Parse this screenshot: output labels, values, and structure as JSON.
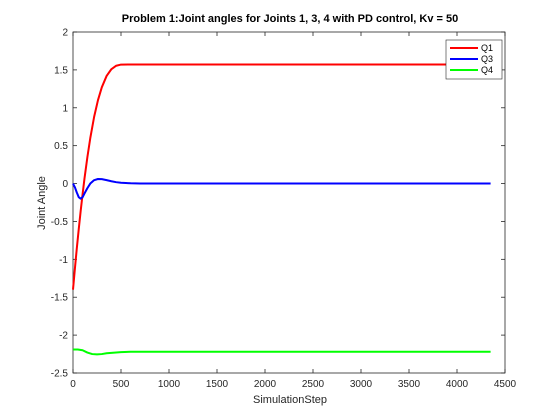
{
  "chart_data": {
    "type": "line",
    "title": "Problem 1:Joint angles for Joints 1, 3, 4 with PD control, Kv = 50",
    "xlabel": "SimulationStep",
    "ylabel": "Joint Angle",
    "xlim": [
      0,
      4500
    ],
    "ylim": [
      -2.5,
      2
    ],
    "xticks": [
      0,
      500,
      1000,
      1500,
      2000,
      2500,
      3000,
      3500,
      4000,
      4500
    ],
    "yticks": [
      -2.5,
      -2,
      -1.5,
      -1,
      -0.5,
      0,
      0.5,
      1,
      1.5,
      2
    ],
    "xtick_labels": [
      "0",
      "500",
      "1000",
      "1500",
      "2000",
      "2500",
      "3000",
      "3500",
      "4000",
      "4500"
    ],
    "ytick_labels": [
      "-2.5",
      "-2",
      "-1.5",
      "-1",
      "-0.5",
      "0",
      "0.5",
      "1",
      "1.5",
      "2"
    ],
    "grid": false,
    "legend_position": "top-right",
    "series": [
      {
        "name": "Q1",
        "color": "#ff0000",
        "x": [
          0,
          20,
          40,
          60,
          80,
          100,
          120,
          150,
          180,
          220,
          260,
          300,
          350,
          400,
          450,
          500,
          600,
          800,
          1000,
          2000,
          3000,
          4000,
          4350
        ],
        "y": [
          -1.4,
          -1.12,
          -0.85,
          -0.6,
          -0.36,
          -0.14,
          0.07,
          0.35,
          0.6,
          0.88,
          1.1,
          1.27,
          1.42,
          1.51,
          1.555,
          1.57,
          1.571,
          1.571,
          1.571,
          1.571,
          1.571,
          1.571,
          1.571
        ]
      },
      {
        "name": "Q3",
        "color": "#0000ff",
        "x": [
          0,
          20,
          40,
          60,
          80,
          100,
          120,
          150,
          180,
          220,
          260,
          300,
          350,
          400,
          450,
          500,
          600,
          700,
          800,
          1000,
          2000,
          3000,
          4000,
          4350
        ],
        "y": [
          0.0,
          -0.05,
          -0.12,
          -0.18,
          -0.2,
          -0.18,
          -0.13,
          -0.06,
          0.0,
          0.045,
          0.06,
          0.058,
          0.045,
          0.03,
          0.018,
          0.01,
          0.004,
          0.001,
          0.0,
          0.0,
          0.0,
          0.0,
          0.0,
          0.0
        ]
      },
      {
        "name": "Q4",
        "color": "#00ff00",
        "x": [
          0,
          50,
          100,
          150,
          200,
          250,
          300,
          350,
          400,
          450,
          500,
          600,
          800,
          1000,
          2000,
          3000,
          4000,
          4350
        ],
        "y": [
          -2.19,
          -2.19,
          -2.2,
          -2.23,
          -2.25,
          -2.255,
          -2.25,
          -2.24,
          -2.235,
          -2.23,
          -2.225,
          -2.22,
          -2.22,
          -2.22,
          -2.22,
          -2.22,
          -2.22,
          -2.22
        ]
      }
    ]
  }
}
